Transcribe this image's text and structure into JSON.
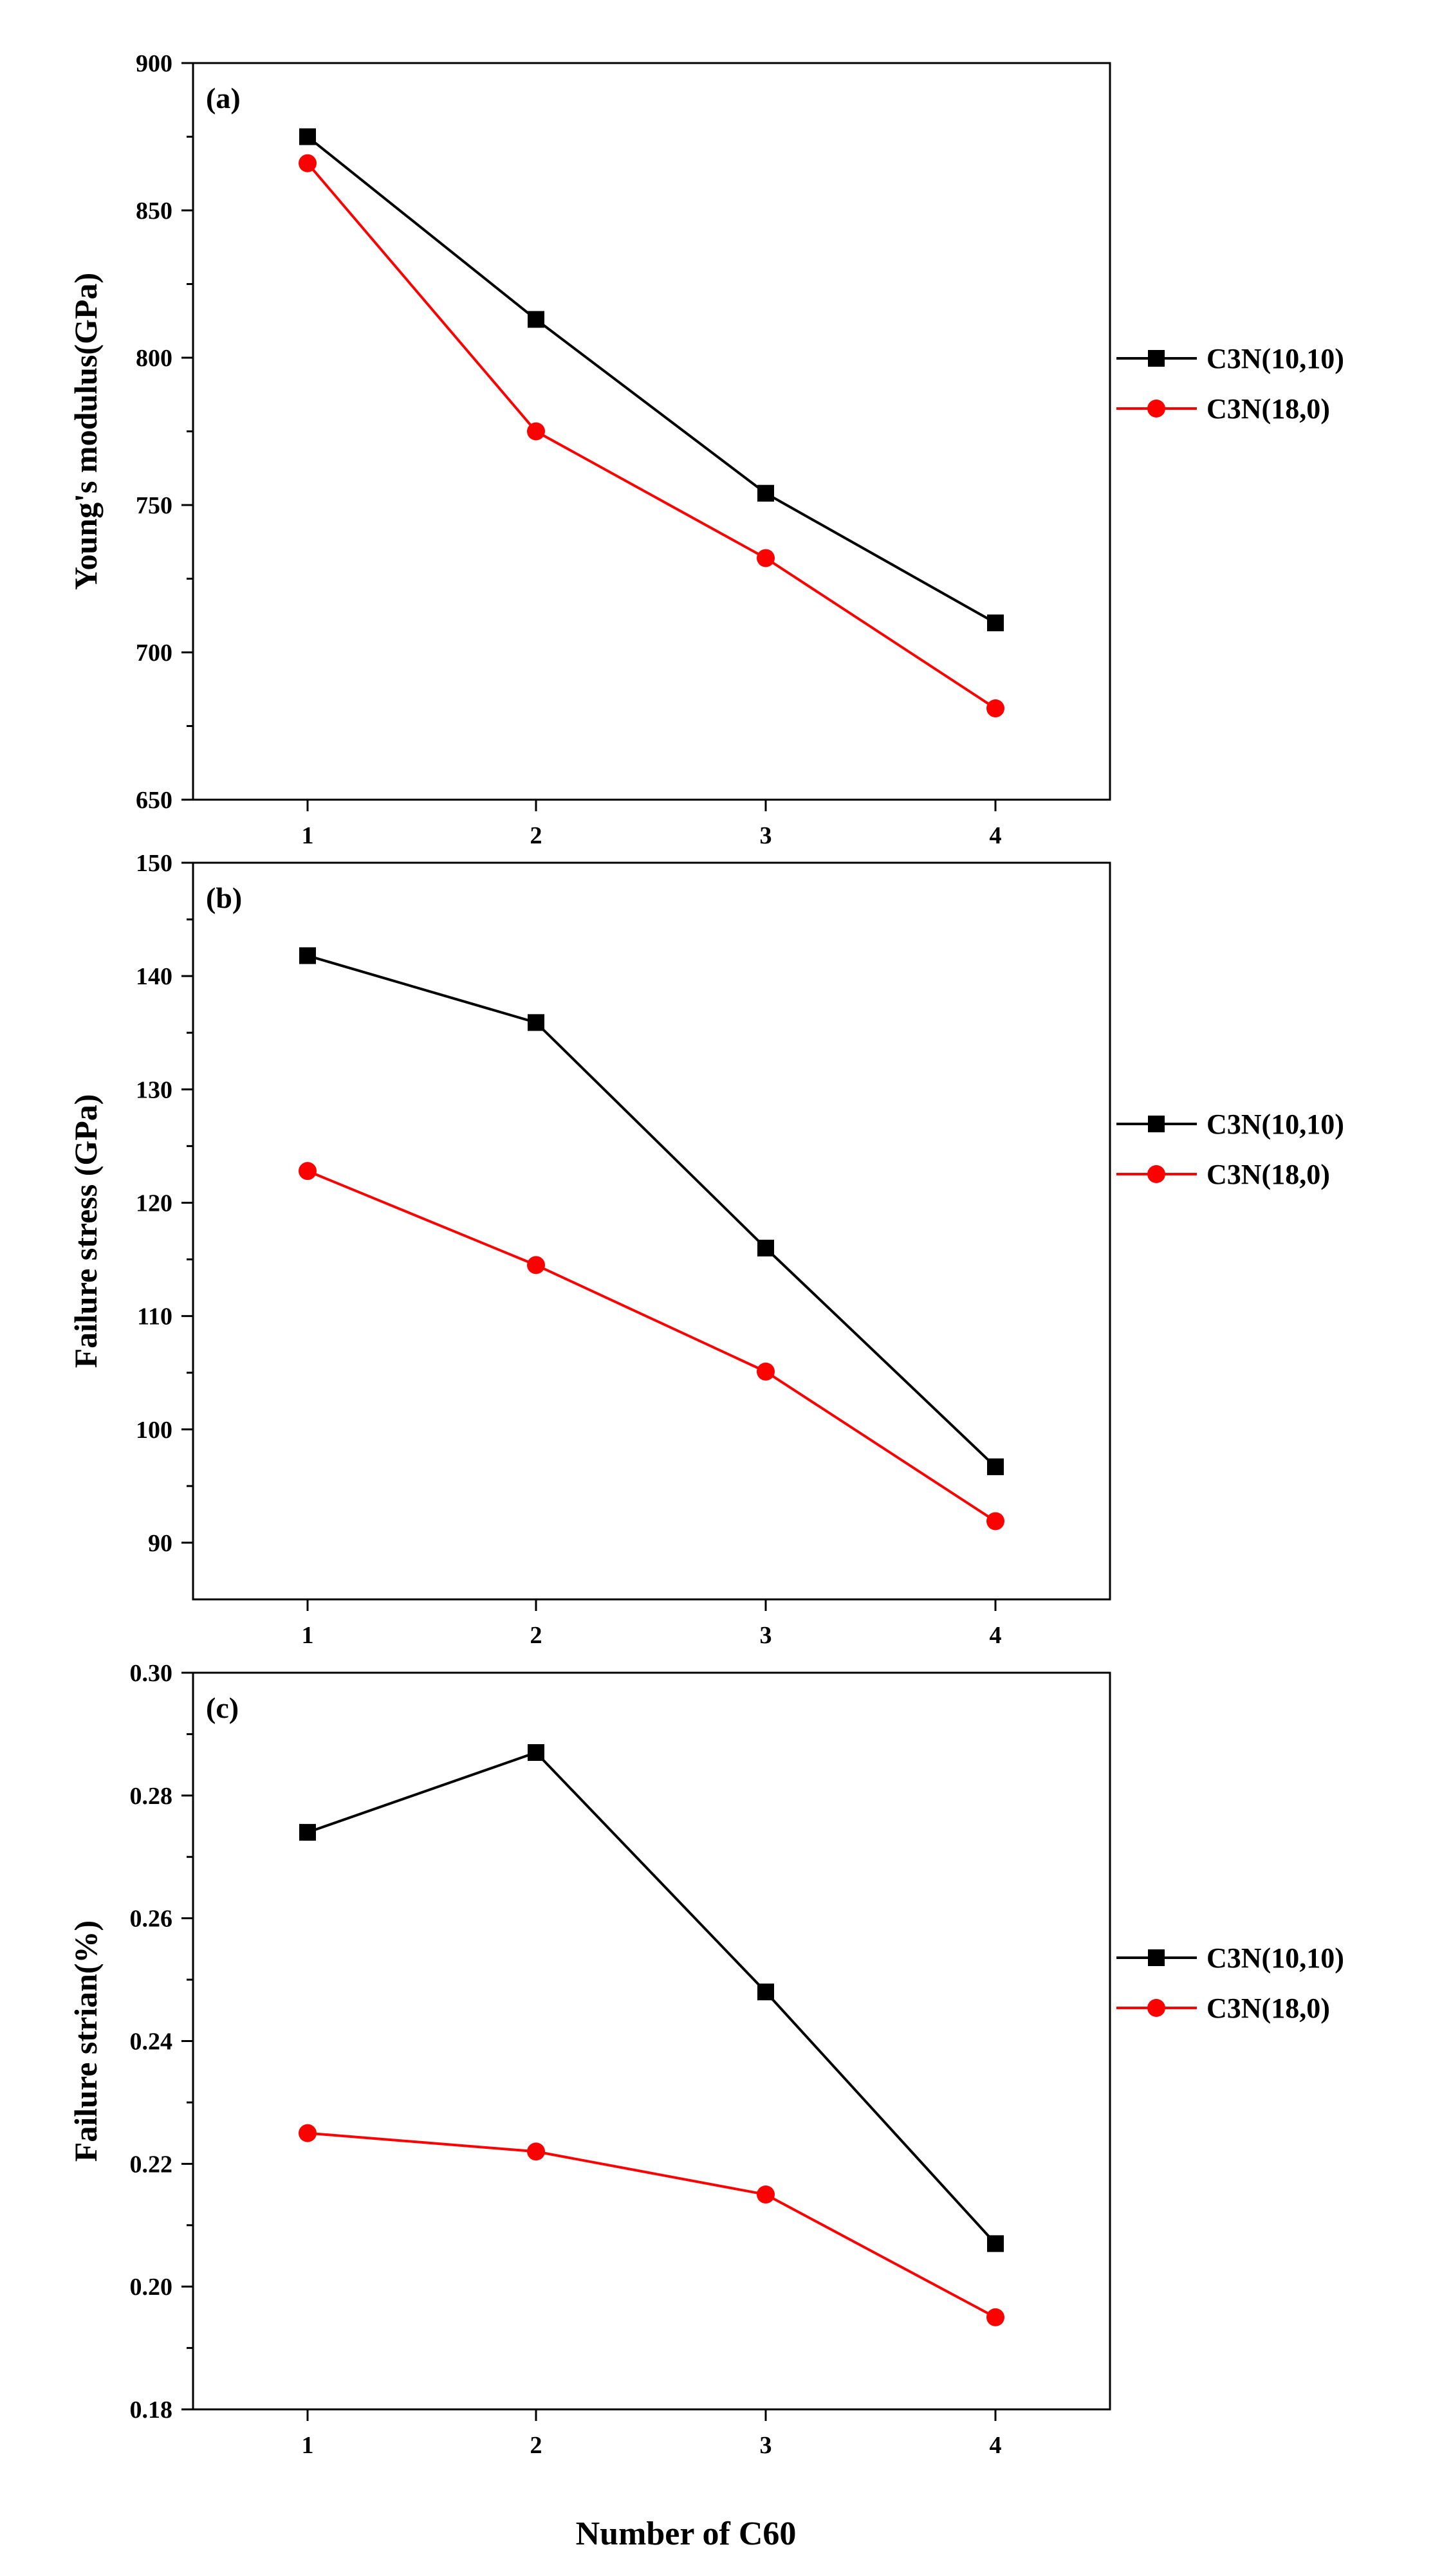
{
  "figure": {
    "xlabel": "Number of C60",
    "series_colors": {
      "C3N(10,10)": "#000000",
      "C3N(18,0)": "#ff0000"
    }
  },
  "chart_data": [
    {
      "type": "line",
      "panel_label": "(a)",
      "x": [
        1,
        2,
        3,
        4
      ],
      "xticks": [
        "1",
        "2",
        "3",
        "4"
      ],
      "ylabel": "Young's modulus(GPa)",
      "ylim": [
        650,
        900
      ],
      "yticks": [
        650,
        700,
        750,
        800,
        850,
        900
      ],
      "ytick_labels": [
        "650",
        "700",
        "750",
        "800",
        "850",
        "900"
      ],
      "legend_position": "right",
      "series": [
        {
          "name": "C3N(10,10)",
          "marker": "square",
          "color": "#000000",
          "values": [
            875,
            813,
            754,
            710
          ]
        },
        {
          "name": "C3N(18,0)",
          "marker": "circle",
          "color": "#ff0000",
          "values": [
            866,
            775,
            732,
            681
          ]
        }
      ]
    },
    {
      "type": "line",
      "panel_label": "(b)",
      "x": [
        1,
        2,
        3,
        4
      ],
      "xticks": [
        "1",
        "2",
        "3",
        "4"
      ],
      "ylabel": "Failure stress (GPa)",
      "ylim": [
        85,
        150
      ],
      "yticks": [
        90,
        100,
        110,
        120,
        130,
        140,
        150
      ],
      "ytick_labels": [
        "90",
        "100",
        "110",
        "120",
        "130",
        "140",
        "150"
      ],
      "legend_position": "right",
      "series": [
        {
          "name": "C3N(10,10)",
          "marker": "square",
          "color": "#000000",
          "values": [
            141.8,
            135.9,
            116.0,
            96.7
          ]
        },
        {
          "name": "C3N(18,0)",
          "marker": "circle",
          "color": "#ff0000",
          "values": [
            122.8,
            114.5,
            105.1,
            91.9
          ]
        }
      ]
    },
    {
      "type": "line",
      "panel_label": "(c)",
      "x": [
        1,
        2,
        3,
        4
      ],
      "xticks": [
        "1",
        "2",
        "3",
        "4"
      ],
      "ylabel": "Failure strian(%)",
      "xlabel": "Number of C60",
      "ylim": [
        0.18,
        0.3
      ],
      "yticks": [
        0.18,
        0.2,
        0.22,
        0.24,
        0.26,
        0.28,
        0.3
      ],
      "ytick_labels": [
        "0.18",
        "0.20",
        "0.22",
        "0.24",
        "0.26",
        "0.28",
        "0.30"
      ],
      "legend_position": "right",
      "series": [
        {
          "name": "C3N(10,10)",
          "marker": "square",
          "color": "#000000",
          "values": [
            0.274,
            0.287,
            0.248,
            0.207
          ]
        },
        {
          "name": "C3N(18,0)",
          "marker": "circle",
          "color": "#ff0000",
          "values": [
            0.225,
            0.222,
            0.215,
            0.195
          ]
        }
      ]
    }
  ]
}
